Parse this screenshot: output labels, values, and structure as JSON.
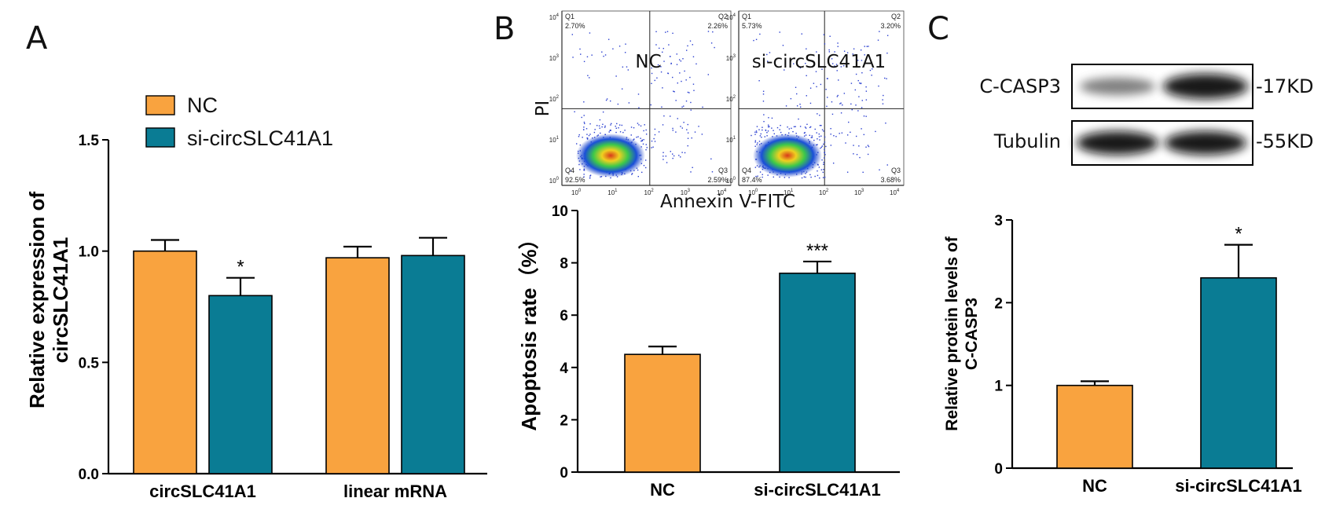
{
  "colors": {
    "nc": "#F9A33F",
    "si": "#0A7C94"
  },
  "panels": {
    "a_label": "A",
    "b_label": "B",
    "c_label": "C"
  },
  "chart_data": [
    {
      "id": "A",
      "type": "bar",
      "categories": [
        "circSLC41A1",
        "linear mRNA"
      ],
      "series": [
        {
          "name": "NC",
          "values": [
            1.0,
            0.97
          ],
          "errors": [
            0.05,
            0.05
          ]
        },
        {
          "name": "si-circSLC41A1",
          "values": [
            0.8,
            0.98
          ],
          "errors": [
            0.08,
            0.08
          ]
        }
      ],
      "significance": [
        {
          "category": "circSLC41A1",
          "series": "si-circSLC41A1",
          "label": "*"
        }
      ],
      "ylabel": "Relative expression of circSLC41A1",
      "yticks": [
        "0.0",
        "0.5",
        "1.0",
        "1.5"
      ],
      "ylim": [
        0,
        1.5
      ],
      "legend": [
        "NC",
        "si-circSLC41A1"
      ]
    },
    {
      "id": "B",
      "type": "bar",
      "categories": [
        "NC",
        "si-circSLC41A1"
      ],
      "values": [
        4.5,
        7.6
      ],
      "errors": [
        0.3,
        0.45
      ],
      "significance": [
        {
          "category": "si-circSLC41A1",
          "label": "***"
        }
      ],
      "ylabel": "Apoptosis rate（%）",
      "yticks": [
        "0",
        "2",
        "4",
        "6",
        "8",
        "10"
      ],
      "ylim": [
        0,
        10
      ]
    },
    {
      "id": "C",
      "type": "bar",
      "categories": [
        "NC",
        "si-circSLC41A1"
      ],
      "values": [
        1.0,
        2.3
      ],
      "errors": [
        0.05,
        0.4
      ],
      "significance": [
        {
          "category": "si-circSLC41A1",
          "label": "*"
        }
      ],
      "ylabel_line1": "Relative protein levels of",
      "ylabel_line2": "C-CASP3",
      "yticks": [
        "0",
        "1",
        "2",
        "3"
      ],
      "ylim": [
        0,
        3
      ]
    }
  ],
  "flow": {
    "ylabel": "PI",
    "xlabel": "Annexin V-FITC",
    "tick_labels": [
      "10",
      "10",
      "10",
      "10",
      "10"
    ],
    "tick_exps": [
      "0",
      "1",
      "2",
      "3",
      "4"
    ],
    "plots": [
      {
        "title": "NC",
        "q1": "Q1",
        "q1_pct": "2.70%",
        "q2": "Q2",
        "q2_pct": "2.26%",
        "q3": "Q3",
        "q3_pct": "2.59%",
        "q4": "Q4",
        "q4_pct": "92.5%"
      },
      {
        "title": "si-circSLC41A1",
        "q1": "Q1",
        "q1_pct": "5.73%",
        "q2": "Q2",
        "q2_pct": "3.20%",
        "q3": "Q3",
        "q3_pct": "3.68%",
        "q4": "Q4",
        "q4_pct": "87.4%"
      }
    ]
  },
  "western": {
    "rows": [
      {
        "label": "C-CASP3",
        "size": "-17KD"
      },
      {
        "label": "Tubulin",
        "size": "-55KD"
      }
    ]
  }
}
